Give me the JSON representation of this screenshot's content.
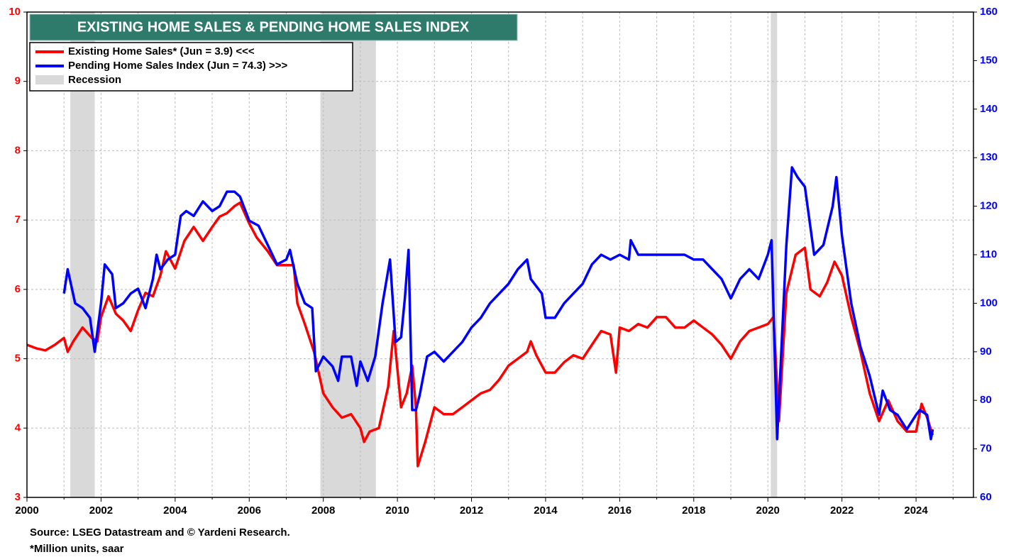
{
  "chart_data": {
    "type": "line",
    "title": "EXISTING HOME SALES & PENDING HOME SALES INDEX",
    "source": "Source: LSEG Datastream and © Yardeni Research.",
    "note": "*Million units, saar",
    "xlim": [
      2000,
      2025.55
    ],
    "xticks": [
      2000,
      2002,
      2004,
      2006,
      2008,
      2010,
      2012,
      2014,
      2016,
      2018,
      2020,
      2022,
      2024
    ],
    "xminorticks": [
      2001,
      2003,
      2005,
      2007,
      2009,
      2011,
      2013,
      2015,
      2017,
      2019,
      2021,
      2023,
      2025
    ],
    "ylim": [
      3,
      10
    ],
    "yticks": [
      3,
      4,
      5,
      6,
      7,
      8,
      9,
      10
    ],
    "y2lim": [
      60,
      160
    ],
    "y2ticks": [
      60,
      70,
      80,
      90,
      100,
      110,
      120,
      130,
      140,
      150,
      160
    ],
    "grid": true,
    "recession_name": "Recession",
    "recession_color": "#d9d9d9",
    "recessions": [
      [
        2001.17,
        2001.83
      ],
      [
        2007.92,
        2009.42
      ],
      [
        2020.08,
        2020.25
      ]
    ],
    "series": [
      {
        "name": "Existing Home Sales* (Jun = 3.9) <<<",
        "color": "#ff0000",
        "axis": "y",
        "x": [
          2000.0,
          2000.25,
          2000.5,
          2000.75,
          2001.0,
          2001.1,
          2001.25,
          2001.5,
          2001.75,
          2001.9,
          2002.0,
          2002.2,
          2002.4,
          2002.6,
          2002.8,
          2003.0,
          2003.2,
          2003.4,
          2003.6,
          2003.75,
          2004.0,
          2004.25,
          2004.5,
          2004.75,
          2005.0,
          2005.2,
          2005.4,
          2005.6,
          2005.75,
          2006.0,
          2006.2,
          2006.5,
          2006.75,
          2007.0,
          2007.2,
          2007.3,
          2007.5,
          2007.75,
          2008.0,
          2008.25,
          2008.5,
          2008.75,
          2009.0,
          2009.1,
          2009.25,
          2009.5,
          2009.75,
          2009.9,
          2010.1,
          2010.25,
          2010.4,
          2010.5,
          2010.55,
          2010.75,
          2011.0,
          2011.25,
          2011.5,
          2011.75,
          2012.0,
          2012.25,
          2012.5,
          2012.75,
          2013.0,
          2013.25,
          2013.5,
          2013.6,
          2013.75,
          2014.0,
          2014.25,
          2014.5,
          2014.75,
          2015.0,
          2015.25,
          2015.5,
          2015.75,
          2015.9,
          2016.0,
          2016.25,
          2016.5,
          2016.75,
          2017.0,
          2017.25,
          2017.5,
          2017.75,
          2018.0,
          2018.25,
          2018.5,
          2018.75,
          2019.0,
          2019.25,
          2019.5,
          2019.75,
          2020.0,
          2020.15,
          2020.3,
          2020.5,
          2020.75,
          2021.0,
          2021.15,
          2021.4,
          2021.6,
          2021.8,
          2022.0,
          2022.25,
          2022.5,
          2022.75,
          2023.0,
          2023.25,
          2023.5,
          2023.75,
          2024.0,
          2024.15,
          2024.3,
          2024.45
        ],
        "values": [
          5.2,
          5.15,
          5.12,
          5.2,
          5.3,
          5.1,
          5.25,
          5.45,
          5.3,
          5.25,
          5.6,
          5.9,
          5.65,
          5.55,
          5.4,
          5.7,
          5.95,
          5.9,
          6.2,
          6.55,
          6.3,
          6.7,
          6.9,
          6.7,
          6.9,
          7.05,
          7.1,
          7.2,
          7.25,
          6.95,
          6.75,
          6.55,
          6.35,
          6.35,
          6.35,
          5.8,
          5.5,
          5.1,
          4.5,
          4.3,
          4.15,
          4.2,
          4.0,
          3.8,
          3.95,
          4.0,
          4.6,
          5.4,
          4.3,
          4.5,
          4.9,
          4.3,
          3.45,
          3.8,
          4.3,
          4.2,
          4.2,
          4.3,
          4.4,
          4.5,
          4.55,
          4.7,
          4.9,
          5.0,
          5.1,
          5.25,
          5.05,
          4.8,
          4.8,
          4.95,
          5.05,
          5.0,
          5.2,
          5.4,
          5.35,
          4.8,
          5.45,
          5.4,
          5.5,
          5.45,
          5.6,
          5.6,
          5.45,
          5.45,
          5.55,
          5.45,
          5.35,
          5.2,
          5.0,
          5.25,
          5.4,
          5.45,
          5.5,
          5.6,
          4.1,
          5.95,
          6.5,
          6.6,
          6.0,
          5.9,
          6.1,
          6.4,
          6.2,
          5.6,
          5.1,
          4.5,
          4.1,
          4.4,
          4.1,
          3.95,
          3.95,
          4.35,
          4.15,
          3.9
        ]
      },
      {
        "name": "Pending Home Sales Index (Jun = 74.3) >>>",
        "color": "#0000ff",
        "axis": "y2",
        "x": [
          2001.0,
          2001.1,
          2001.3,
          2001.5,
          2001.7,
          2001.83,
          2002.0,
          2002.1,
          2002.3,
          2002.4,
          2002.6,
          2002.8,
          2003.0,
          2003.2,
          2003.4,
          2003.5,
          2003.6,
          2003.8,
          2004.0,
          2004.15,
          2004.3,
          2004.5,
          2004.75,
          2005.0,
          2005.2,
          2005.4,
          2005.6,
          2005.75,
          2006.0,
          2006.25,
          2006.5,
          2006.75,
          2007.0,
          2007.1,
          2007.3,
          2007.5,
          2007.7,
          2007.8,
          2008.0,
          2008.25,
          2008.4,
          2008.5,
          2008.75,
          2008.9,
          2009.0,
          2009.2,
          2009.4,
          2009.6,
          2009.8,
          2009.95,
          2010.1,
          2010.2,
          2010.3,
          2010.4,
          2010.5,
          2010.6,
          2010.8,
          2011.0,
          2011.25,
          2011.5,
          2011.75,
          2012.0,
          2012.25,
          2012.5,
          2012.75,
          2013.0,
          2013.25,
          2013.5,
          2013.6,
          2013.9,
          2014.0,
          2014.25,
          2014.5,
          2014.75,
          2015.0,
          2015.25,
          2015.5,
          2015.75,
          2016.0,
          2016.25,
          2016.3,
          2016.5,
          2016.75,
          2017.0,
          2017.25,
          2017.5,
          2017.75,
          2018.0,
          2018.25,
          2018.5,
          2018.75,
          2019.0,
          2019.25,
          2019.5,
          2019.75,
          2020.0,
          2020.1,
          2020.25,
          2020.5,
          2020.65,
          2020.8,
          2021.0,
          2021.25,
          2021.5,
          2021.75,
          2021.85,
          2022.0,
          2022.25,
          2022.5,
          2022.75,
          2023.0,
          2023.1,
          2023.3,
          2023.5,
          2023.75,
          2024.0,
          2024.1,
          2024.3,
          2024.4,
          2024.45
        ],
        "values": [
          102,
          107,
          100,
          99,
          97,
          90,
          100,
          108,
          106,
          99,
          100,
          102,
          103,
          99,
          105,
          110,
          107,
          109,
          110,
          118,
          119,
          118,
          121,
          119,
          120,
          123,
          123,
          122,
          117,
          116,
          112,
          108,
          109,
          111,
          104,
          100,
          99,
          86,
          89,
          87,
          84,
          89,
          89,
          83,
          88,
          84,
          89,
          100,
          109,
          92,
          93,
          101,
          111,
          78,
          78,
          81,
          89,
          90,
          88,
          90,
          92,
          95,
          97,
          100,
          102,
          104,
          107,
          109,
          105,
          102,
          97,
          97,
          100,
          102,
          104,
          108,
          110,
          109,
          110,
          109,
          113,
          110,
          110,
          110,
          110,
          110,
          110,
          109,
          109,
          107,
          105,
          101,
          105,
          107,
          105,
          110,
          113,
          72,
          112,
          128,
          126,
          124,
          110,
          112,
          120,
          126,
          114,
          100,
          91,
          85,
          77,
          82,
          78,
          77,
          74,
          77,
          78,
          77,
          72,
          74
        ]
      }
    ]
  }
}
